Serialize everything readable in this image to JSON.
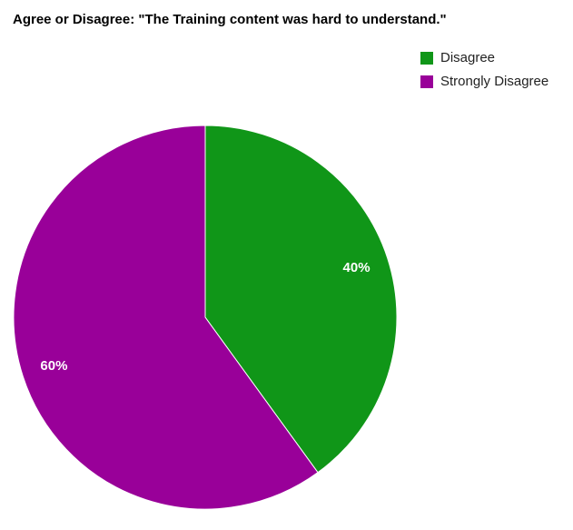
{
  "chart_data": {
    "type": "pie",
    "title": "Agree or Disagree: \"The Training content was hard to understand.\"",
    "categories": [
      "Disagree",
      "Strongly Disagree"
    ],
    "values": [
      40,
      60
    ],
    "value_labels": [
      "40%",
      "60%"
    ],
    "colors": [
      "#109618",
      "#990099"
    ],
    "legend": "top-right"
  }
}
